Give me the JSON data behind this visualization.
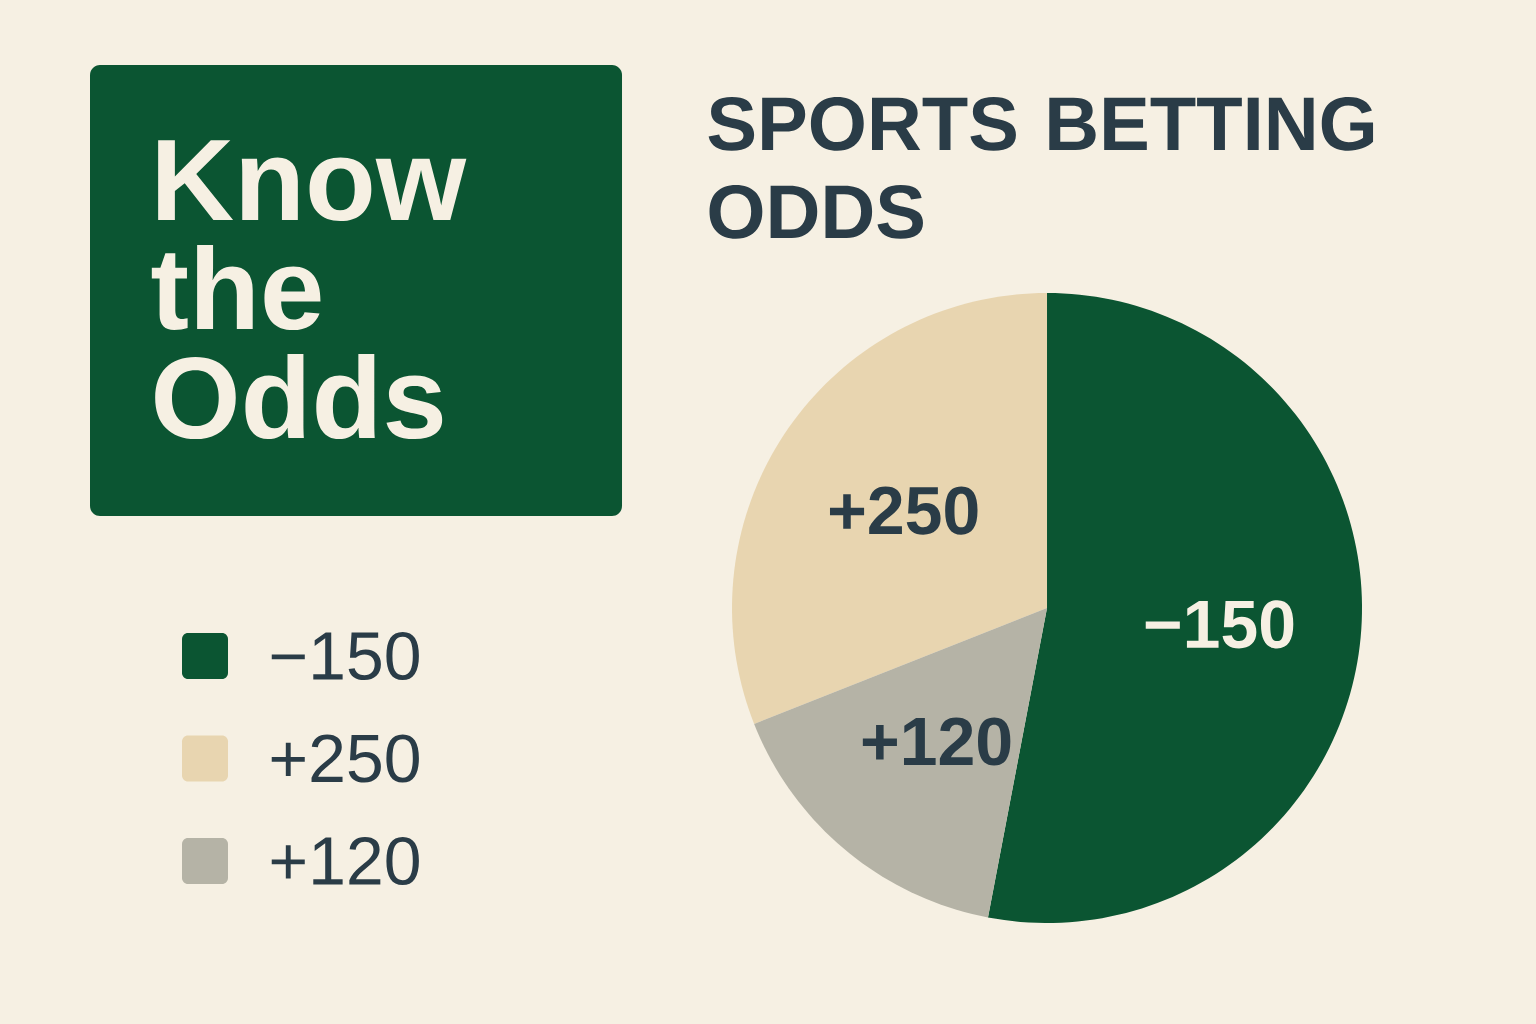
{
  "chart_data": {
    "type": "pie",
    "title": "Know the Odds",
    "subtitle": "SPORTS BETTING ODDS",
    "categories": [
      "−150",
      "+250",
      "+120"
    ],
    "values": [
      53,
      31,
      16
    ],
    "colors": [
      "#0b5532",
      "#e8d5b0",
      "#b5b3a6"
    ],
    "legend": "left"
  }
}
